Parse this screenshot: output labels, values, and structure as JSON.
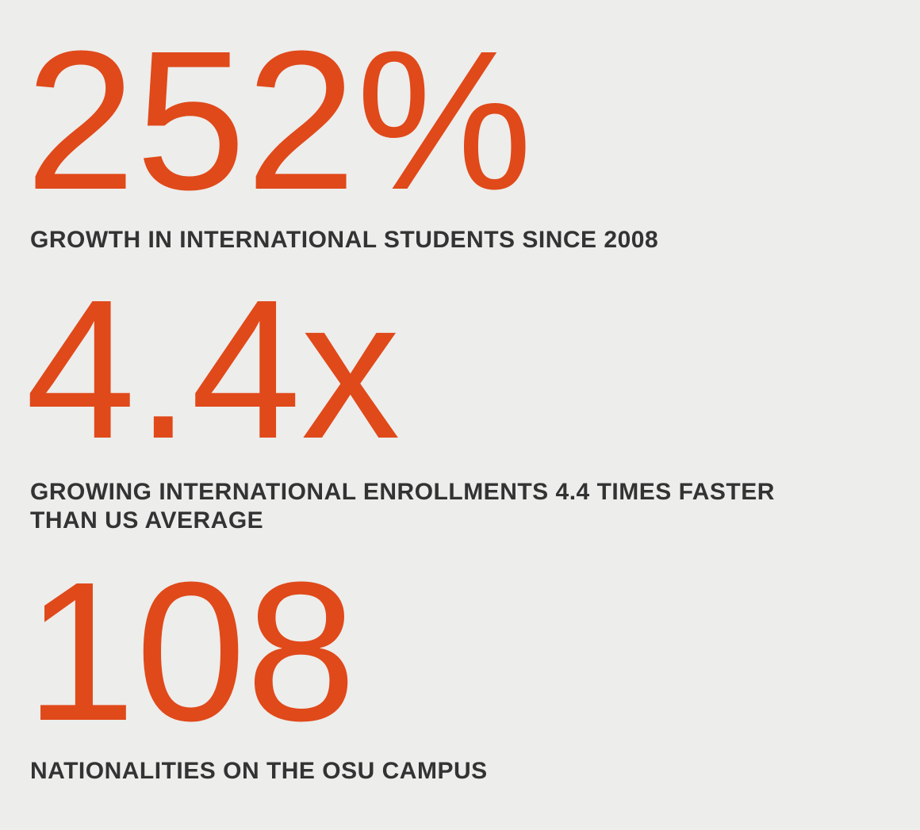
{
  "stats": [
    {
      "figure": "252%",
      "caption": [
        "GROWTH IN INTERNATIONAL STUDENTS SINCE 2008"
      ]
    },
    {
      "figure": "4.4x",
      "caption": [
        "GROWING INTERNATIONAL ENROLLMENTS 4.4 TIMES FASTER",
        "THAN US AVERAGE"
      ]
    },
    {
      "figure": "108",
      "caption": [
        "NATIONALITIES ON THE OSU CAMPUS"
      ]
    }
  ]
}
